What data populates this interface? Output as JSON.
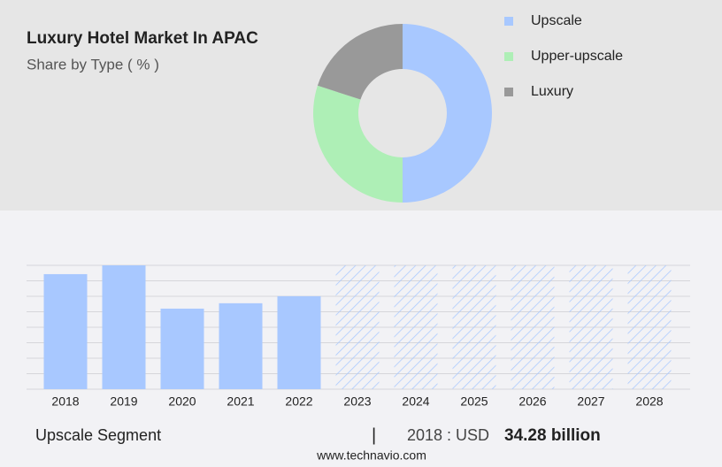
{
  "chart_data": [
    {
      "type": "pie",
      "title": "Luxury Hotel Market In APAC",
      "subtitle": "Share by Type ( % )",
      "donut": true,
      "legend": "top-right",
      "categories": [
        "Upscale",
        "Upper-upscale",
        "Luxury"
      ],
      "values": [
        50,
        30,
        20
      ],
      "colors": [
        "#a8c8ff",
        "#aeefb6",
        "#999999"
      ]
    },
    {
      "type": "bar",
      "categories": [
        "2018",
        "2019",
        "2020",
        "2021",
        "2022",
        "2023",
        "2024",
        "2025",
        "2026",
        "2027",
        "2028"
      ],
      "values": [
        34.28,
        36.9,
        24.0,
        25.6,
        27.7,
        null,
        null,
        null,
        null,
        null,
        null
      ],
      "color": "#a8c8ff",
      "ylim": [
        0,
        36.9
      ],
      "grid": true
    }
  ],
  "footer": {
    "segment": "Upscale Segment",
    "separator": "|",
    "year_label": "2018 : USD",
    "value_label": "34.28 billion"
  },
  "source": "www.technavio.com"
}
